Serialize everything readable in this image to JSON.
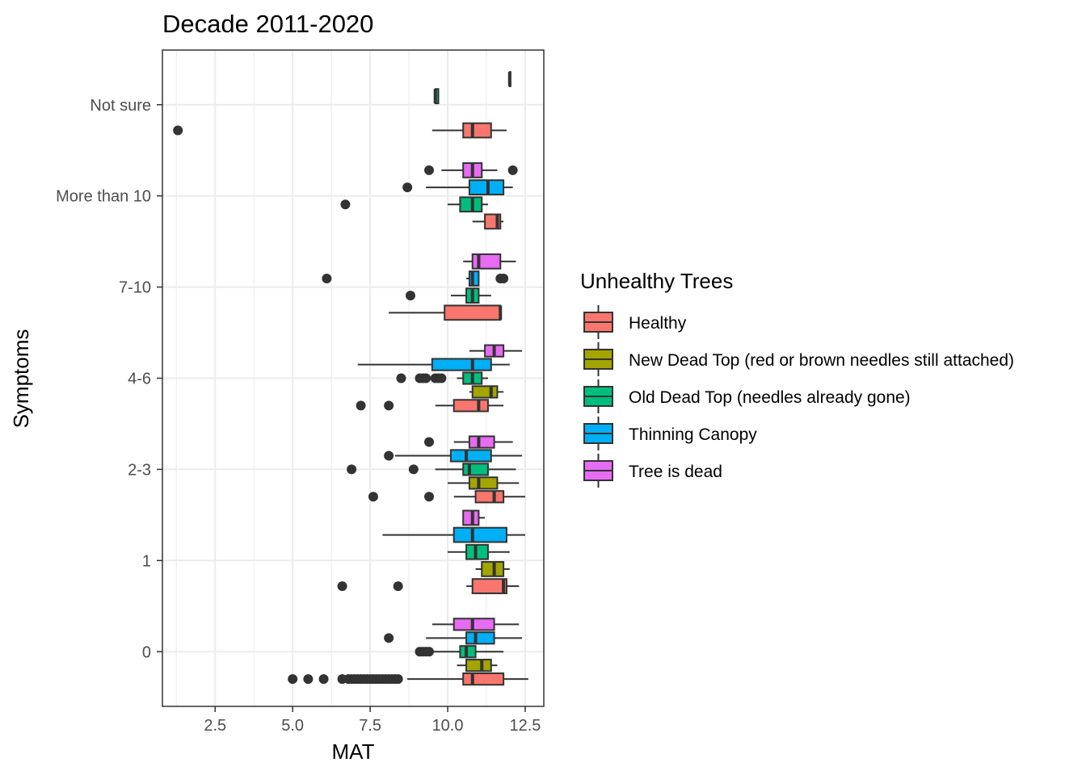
{
  "chart_data": {
    "type": "boxplot",
    "orientation": "horizontal",
    "title": "Decade 2011-2020",
    "xlabel": "MAT",
    "ylabel": "Symptoms",
    "xlim": [
      0.8,
      13.1
    ],
    "x_ticks": [
      2.5,
      5.0,
      7.5,
      10.0,
      12.5
    ],
    "x_tick_labels": [
      "2.5",
      "5.0",
      "7.5",
      "10.0",
      "12.5"
    ],
    "categories": [
      "0",
      "1",
      "2-3",
      "4-6",
      "7-10",
      "More than 10",
      "Not sure"
    ],
    "grid": true,
    "legend": {
      "title": "Unhealthy Trees",
      "position": "right",
      "entries": [
        {
          "name": "Healthy",
          "color": "#F8766D"
        },
        {
          "name": "New Dead Top (red or brown needles still attached)",
          "color": "#A3A500"
        },
        {
          "name": "Old Dead Top (needles already gone)",
          "color": "#00BF7D"
        },
        {
          "name": "Thinning Canopy",
          "color": "#00B0F6"
        },
        {
          "name": "Tree is dead",
          "color": "#E76BF3"
        }
      ]
    },
    "boxes": [
      {
        "category": "0",
        "group": "Healthy",
        "slot": 0,
        "nslots": 5,
        "whisker_low": 8.7,
        "q1": 10.5,
        "median": 10.8,
        "q3": 11.8,
        "whisker_high": 12.6,
        "outliers": [
          5.0,
          5.5,
          6.0,
          6.6,
          6.8,
          6.9,
          7.0,
          7.1,
          7.2,
          7.3,
          7.4,
          7.5,
          7.6,
          7.7,
          7.8,
          7.9,
          8.0,
          8.1,
          8.2,
          8.3,
          8.4
        ]
      },
      {
        "category": "0",
        "group": "New Dead Top (red or brown needles still attached)",
        "slot": 1,
        "nslots": 5,
        "whisker_low": 10.3,
        "q1": 10.6,
        "median": 11.1,
        "q3": 11.4,
        "whisker_high": 11.6,
        "outliers": []
      },
      {
        "category": "0",
        "group": "Old Dead Top (needles already gone)",
        "slot": 2,
        "nslots": 5,
        "whisker_low": 9.4,
        "q1": 10.4,
        "median": 10.6,
        "q3": 10.9,
        "whisker_high": 11.8,
        "outliers": [
          9.1,
          9.2,
          9.3,
          9.4
        ]
      },
      {
        "category": "0",
        "group": "Thinning Canopy",
        "slot": 3,
        "nslots": 5,
        "whisker_low": 9.3,
        "q1": 10.6,
        "median": 10.9,
        "q3": 11.5,
        "whisker_high": 12.4,
        "outliers": [
          8.1
        ]
      },
      {
        "category": "0",
        "group": "Tree is dead",
        "slot": 4,
        "nslots": 5,
        "whisker_low": 9.5,
        "q1": 10.2,
        "median": 10.8,
        "q3": 11.5,
        "whisker_high": 12.3,
        "outliers": []
      },
      {
        "category": "1",
        "group": "Healthy",
        "slot": 0,
        "nslots": 4,
        "whisker_low": 10.6,
        "q1": 10.8,
        "median": 11.8,
        "q3": 11.9,
        "whisker_high": 12.3,
        "outliers": [
          6.6,
          8.4
        ]
      },
      {
        "category": "1",
        "group": "New Dead Top (red or brown needles still attached)",
        "slot": 1,
        "nslots": 4,
        "whisker_low": 10.9,
        "q1": 11.1,
        "median": 11.5,
        "q3": 11.8,
        "whisker_high": 12.0,
        "outliers": []
      },
      {
        "category": "1",
        "group": "Old Dead Top (needles already gone)",
        "slot": 2,
        "nslots": 4,
        "whisker_low": 10.0,
        "q1": 10.6,
        "median": 10.9,
        "q3": 11.3,
        "whisker_high": 12.0,
        "outliers": []
      },
      {
        "category": "1",
        "group": "Thinning Canopy",
        "slot": 3,
        "nslots": 4,
        "whisker_low": 7.9,
        "q1": 10.2,
        "median": 10.8,
        "q3": 11.9,
        "whisker_high": 12.5,
        "outliers": []
      },
      {
        "category": "1",
        "group": "Tree is dead",
        "slot": 4,
        "nslots": 4,
        "whisker_low": 10.5,
        "q1": 10.5,
        "median": 10.8,
        "q3": 11.0,
        "whisker_high": 11.2,
        "outliers": []
      },
      {
        "category": "2-3",
        "group": "Healthy",
        "slot": 0,
        "nslots": 5,
        "whisker_low": 10.2,
        "q1": 10.9,
        "median": 11.5,
        "q3": 11.8,
        "whisker_high": 12.5,
        "outliers": [
          7.6,
          9.4
        ]
      },
      {
        "category": "2-3",
        "group": "New Dead Top (red or brown needles still attached)",
        "slot": 1,
        "nslots": 5,
        "whisker_low": 10.0,
        "q1": 10.7,
        "median": 11.0,
        "q3": 11.6,
        "whisker_high": 12.3,
        "outliers": []
      },
      {
        "category": "2-3",
        "group": "Old Dead Top (needles already gone)",
        "slot": 2,
        "nslots": 5,
        "whisker_low": 9.6,
        "q1": 10.5,
        "median": 10.7,
        "q3": 11.3,
        "whisker_high": 12.2,
        "outliers": [
          6.9,
          8.9
        ]
      },
      {
        "category": "2-3",
        "group": "Thinning Canopy",
        "slot": 3,
        "nslots": 5,
        "whisker_low": 8.3,
        "q1": 10.1,
        "median": 10.6,
        "q3": 11.4,
        "whisker_high": 12.4,
        "outliers": [
          8.1
        ]
      },
      {
        "category": "2-3",
        "group": "Tree is dead",
        "slot": 4,
        "nslots": 5,
        "whisker_low": 10.2,
        "q1": 10.7,
        "median": 11.0,
        "q3": 11.5,
        "whisker_high": 12.1,
        "outliers": [
          9.4
        ]
      },
      {
        "category": "4-6",
        "group": "Healthy",
        "slot": 0,
        "nslots": 5,
        "whisker_low": 9.6,
        "q1": 10.2,
        "median": 11.0,
        "q3": 11.3,
        "whisker_high": 11.8,
        "outliers": [
          7.2,
          8.1
        ]
      },
      {
        "category": "4-6",
        "group": "New Dead Top (red or brown needles still attached)",
        "slot": 1,
        "nslots": 5,
        "whisker_low": 10.7,
        "q1": 10.8,
        "median": 11.4,
        "q3": 11.6,
        "whisker_high": 11.8,
        "outliers": []
      },
      {
        "category": "4-6",
        "group": "Old Dead Top (needles already gone)",
        "slot": 2,
        "nslots": 5,
        "whisker_low": 10.3,
        "q1": 10.5,
        "median": 10.8,
        "q3": 11.1,
        "whisker_high": 11.3,
        "outliers": [
          8.5,
          9.1,
          9.2,
          9.3,
          9.6,
          9.7,
          9.8
        ]
      },
      {
        "category": "4-6",
        "group": "Thinning Canopy",
        "slot": 3,
        "nslots": 5,
        "whisker_low": 7.1,
        "q1": 9.5,
        "median": 10.8,
        "q3": 11.4,
        "whisker_high": 12.0,
        "outliers": []
      },
      {
        "category": "4-6",
        "group": "Tree is dead",
        "slot": 4,
        "nslots": 5,
        "whisker_low": 10.7,
        "q1": 11.2,
        "median": 11.5,
        "q3": 11.8,
        "whisker_high": 12.4,
        "outliers": []
      },
      {
        "category": "7-10",
        "group": "Healthy",
        "slot": 0,
        "nslots": 4,
        "whisker_low": 8.1,
        "q1": 9.9,
        "median": 11.7,
        "q3": 11.7,
        "whisker_high": 11.7,
        "outliers": []
      },
      {
        "category": "7-10",
        "group": "Old Dead Top (needles already gone)",
        "slot": 1,
        "nslots": 4,
        "whisker_low": 10.1,
        "q1": 10.6,
        "median": 10.8,
        "q3": 11.0,
        "whisker_high": 11.4,
        "outliers": [
          8.8
        ]
      },
      {
        "category": "7-10",
        "group": "Thinning Canopy",
        "slot": 2,
        "nslots": 4,
        "whisker_low": 10.6,
        "q1": 10.7,
        "median": 10.8,
        "q3": 11.0,
        "whisker_high": 11.0,
        "outliers": [
          6.1,
          11.7,
          11.8
        ]
      },
      {
        "category": "7-10",
        "group": "Tree is dead",
        "slot": 3,
        "nslots": 4,
        "whisker_low": 10.5,
        "q1": 10.8,
        "median": 11.0,
        "q3": 11.7,
        "whisker_high": 12.2,
        "outliers": []
      },
      {
        "category": "More than 10",
        "group": "Healthy",
        "slot": 0,
        "nslots": 4,
        "whisker_low": 10.8,
        "q1": 11.2,
        "median": 11.6,
        "q3": 11.7,
        "whisker_high": 11.8,
        "outliers": []
      },
      {
        "category": "More than 10",
        "group": "Old Dead Top (needles already gone)",
        "slot": 1,
        "nslots": 4,
        "whisker_low": 10.0,
        "q1": 10.4,
        "median": 10.8,
        "q3": 11.1,
        "whisker_high": 11.3,
        "outliers": [
          6.7
        ]
      },
      {
        "category": "More than 10",
        "group": "Thinning Canopy",
        "slot": 2,
        "nslots": 4,
        "whisker_low": 9.3,
        "q1": 10.7,
        "median": 11.3,
        "q3": 11.8,
        "whisker_high": 12.1,
        "outliers": [
          8.7
        ]
      },
      {
        "category": "More than 10",
        "group": "Tree is dead",
        "slot": 3,
        "nslots": 4,
        "whisker_low": 9.8,
        "q1": 10.5,
        "median": 10.8,
        "q3": 11.1,
        "whisker_high": 11.6,
        "outliers": [
          9.4,
          12.1
        ]
      },
      {
        "category": "Not sure",
        "group": "Healthy",
        "slot": 0,
        "nslots": 4,
        "whisker_low": 9.5,
        "q1": 10.5,
        "median": 10.8,
        "q3": 11.4,
        "whisker_high": 11.9,
        "outliers": [
          1.3
        ]
      },
      {
        "category": "Not sure",
        "group": "Old Dead Top (needles already gone)",
        "slot": 2,
        "nslots": 4,
        "whisker_low": 9.6,
        "q1": 9.6,
        "median": 9.6,
        "q3": 9.7,
        "whisker_high": 9.7,
        "outliers": []
      },
      {
        "category": "Not sure",
        "group": "Tree is dead",
        "slot": 3,
        "nslots": 4,
        "whisker_low": 12.0,
        "q1": 12.0,
        "median": 12.0,
        "q3": 12.0,
        "whisker_high": 12.0,
        "outliers": []
      }
    ]
  }
}
